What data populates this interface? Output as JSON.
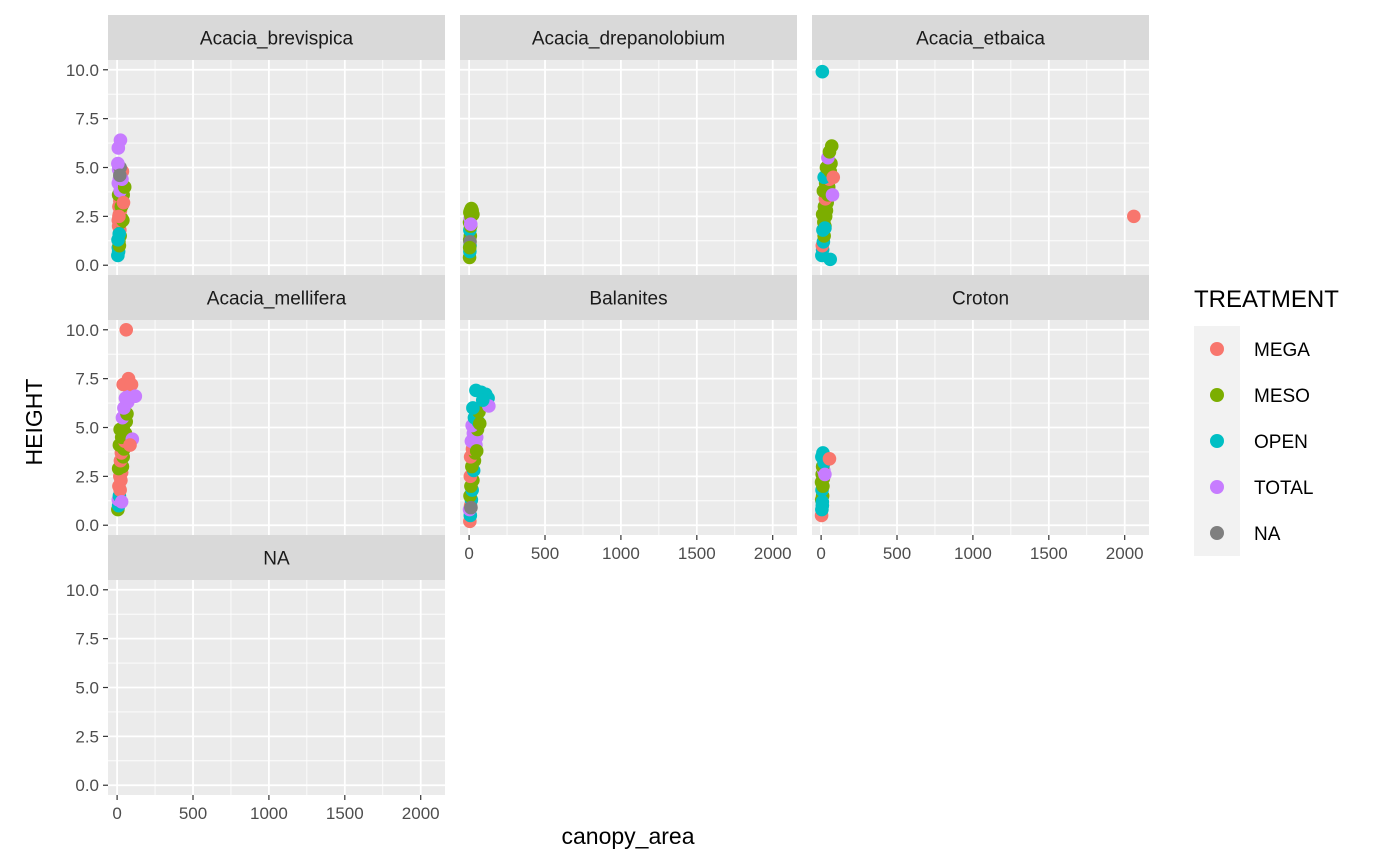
{
  "chart_data": {
    "type": "scatter",
    "xlabel": "canopy_area",
    "ylabel": "HEIGHT",
    "xlim": [
      -60,
      2160
    ],
    "ylim": [
      -0.5,
      10.5
    ],
    "x_ticks": [
      0,
      500,
      1000,
      1500,
      2000
    ],
    "x_tick_labels": [
      "0",
      "500",
      "1000",
      "1500",
      "2000"
    ],
    "y_ticks": [
      0,
      2.5,
      5,
      7.5,
      10
    ],
    "y_tick_labels": [
      "0.0",
      "2.5",
      "5.0",
      "7.5",
      "10.0"
    ],
    "grid": true,
    "legend": {
      "title": "TREATMENT",
      "position": "right",
      "entries": [
        {
          "name": "MEGA",
          "color": "#F8766D"
        },
        {
          "name": "MESO",
          "color": "#7CAE00"
        },
        {
          "name": "OPEN",
          "color": "#00BFC4"
        },
        {
          "name": "TOTAL",
          "color": "#C77CFF"
        },
        {
          "name": "NA",
          "color": "#7F7F7F"
        }
      ]
    },
    "panels": [
      {
        "title": "Acacia_brevispica",
        "points": [
          [
            5,
            0.5,
            "OPEN"
          ],
          [
            10,
            0.7,
            "OPEN"
          ],
          [
            8,
            0.9,
            "OPEN"
          ],
          [
            15,
            1.0,
            "MESO"
          ],
          [
            12,
            1.2,
            "MESO"
          ],
          [
            20,
            1.5,
            "MESO"
          ],
          [
            6,
            1.3,
            "OPEN"
          ],
          [
            18,
            1.8,
            "MEGA"
          ],
          [
            10,
            2.0,
            "MEGA"
          ],
          [
            25,
            2.2,
            "MESO"
          ],
          [
            8,
            2.3,
            "MEGA"
          ],
          [
            30,
            2.4,
            "MESO"
          ],
          [
            15,
            2.6,
            "MEGA"
          ],
          [
            22,
            2.8,
            "MEGA"
          ],
          [
            12,
            3.0,
            "MEGA"
          ],
          [
            35,
            3.1,
            "MESO"
          ],
          [
            18,
            3.3,
            "MEGA"
          ],
          [
            28,
            3.5,
            "MEGA"
          ],
          [
            10,
            3.6,
            "MESO"
          ],
          [
            40,
            3.6,
            "MESO"
          ],
          [
            20,
            3.8,
            "TOTAL"
          ],
          [
            45,
            4.0,
            "TOTAL"
          ],
          [
            8,
            4.2,
            "TOTAL"
          ],
          [
            30,
            4.2,
            "TOTAL"
          ],
          [
            15,
            4.4,
            "TOTAL"
          ],
          [
            25,
            4.6,
            "MEGA"
          ],
          [
            35,
            4.8,
            "MEGA"
          ],
          [
            10,
            4.9,
            "TOTAL"
          ],
          [
            20,
            5.0,
            "NA"
          ],
          [
            5,
            5.2,
            "TOTAL"
          ],
          [
            8,
            6.0,
            "TOTAL"
          ],
          [
            22,
            6.4,
            "TOTAL"
          ],
          [
            50,
            4.0,
            "MESO"
          ],
          [
            38,
            2.3,
            "MESO"
          ],
          [
            14,
            1.6,
            "OPEN"
          ],
          [
            28,
            3.0,
            "MESO"
          ],
          [
            32,
            4.4,
            "TOTAL"
          ],
          [
            12,
            2.5,
            "MEGA"
          ],
          [
            42,
            3.2,
            "MEGA"
          ],
          [
            18,
            4.6,
            "NA"
          ]
        ]
      },
      {
        "title": "Acacia_drepanolobium",
        "points": [
          [
            3,
            0.4,
            "MESO"
          ],
          [
            5,
            0.7,
            "OPEN"
          ],
          [
            6,
            1.0,
            "OPEN"
          ],
          [
            4,
            1.3,
            "MESO"
          ],
          [
            8,
            1.5,
            "MESO"
          ],
          [
            5,
            1.8,
            "OPEN"
          ],
          [
            10,
            2.0,
            "MESO"
          ],
          [
            3,
            2.2,
            "MESO"
          ],
          [
            7,
            2.4,
            "TOTAL"
          ],
          [
            12,
            2.5,
            "MESO"
          ],
          [
            5,
            2.7,
            "MESO"
          ],
          [
            9,
            2.8,
            "MESO"
          ],
          [
            15,
            2.9,
            "MESO"
          ],
          [
            20,
            2.8,
            "MESO"
          ],
          [
            25,
            2.6,
            "MESO"
          ],
          [
            6,
            1.2,
            "NA"
          ],
          [
            11,
            2.1,
            "TOTAL"
          ],
          [
            4,
            0.9,
            "MESO"
          ]
        ]
      },
      {
        "title": "Acacia_etbaica",
        "points": [
          [
            5,
            0.5,
            "OPEN"
          ],
          [
            10,
            0.8,
            "OPEN"
          ],
          [
            8,
            1.0,
            "MEGA"
          ],
          [
            15,
            1.2,
            "OPEN"
          ],
          [
            20,
            1.5,
            "MESO"
          ],
          [
            12,
            1.8,
            "OPEN"
          ],
          [
            25,
            2.0,
            "MESO"
          ],
          [
            18,
            2.2,
            "MESO"
          ],
          [
            30,
            2.5,
            "MESO"
          ],
          [
            10,
            2.6,
            "MESO"
          ],
          [
            35,
            2.8,
            "MESO"
          ],
          [
            22,
            3.0,
            "MESO"
          ],
          [
            40,
            3.2,
            "MESO"
          ],
          [
            28,
            3.4,
            "MEGA"
          ],
          [
            45,
            3.6,
            "MESO"
          ],
          [
            15,
            3.8,
            "MESO"
          ],
          [
            50,
            4.0,
            "MESO"
          ],
          [
            30,
            4.2,
            "MESO"
          ],
          [
            55,
            4.4,
            "MEGA"
          ],
          [
            20,
            4.5,
            "OPEN"
          ],
          [
            40,
            4.6,
            "OPEN"
          ],
          [
            60,
            4.8,
            "MESO"
          ],
          [
            35,
            5.0,
            "MESO"
          ],
          [
            65,
            5.2,
            "MESO"
          ],
          [
            45,
            5.5,
            "TOTAL"
          ],
          [
            55,
            5.8,
            "MESO"
          ],
          [
            70,
            6.1,
            "MESO"
          ],
          [
            8,
            9.9,
            "OPEN"
          ],
          [
            60,
            0.3,
            "OPEN"
          ],
          [
            25,
            1.9,
            "OPEN"
          ],
          [
            75,
            3.6,
            "TOTAL"
          ],
          [
            80,
            4.5,
            "MEGA"
          ],
          [
            2060,
            2.5,
            "MEGA"
          ]
        ]
      },
      {
        "title": "Acacia_mellifera",
        "points": [
          [
            5,
            0.8,
            "MESO"
          ],
          [
            10,
            1.0,
            "OPEN"
          ],
          [
            8,
            1.3,
            "TOTAL"
          ],
          [
            15,
            1.5,
            "OPEN"
          ],
          [
            20,
            1.8,
            "MEGA"
          ],
          [
            12,
            2.0,
            "MEGA"
          ],
          [
            25,
            2.3,
            "MEGA"
          ],
          [
            18,
            2.5,
            "MEGA"
          ],
          [
            30,
            2.7,
            "MEGA"
          ],
          [
            10,
            2.9,
            "MESO"
          ],
          [
            35,
            3.0,
            "MESO"
          ],
          [
            22,
            3.3,
            "MEGA"
          ],
          [
            40,
            3.5,
            "MESO"
          ],
          [
            28,
            3.7,
            "MEGA"
          ],
          [
            45,
            3.9,
            "MESO"
          ],
          [
            15,
            4.1,
            "MESO"
          ],
          [
            50,
            4.3,
            "MEGA"
          ],
          [
            30,
            4.5,
            "MESO"
          ],
          [
            55,
            4.7,
            "MESO"
          ],
          [
            20,
            4.9,
            "MESO"
          ],
          [
            40,
            5.0,
            "MESO"
          ],
          [
            60,
            5.3,
            "MESO"
          ],
          [
            35,
            5.5,
            "TOTAL"
          ],
          [
            65,
            5.7,
            "MESO"
          ],
          [
            45,
            6.0,
            "TOTAL"
          ],
          [
            70,
            6.3,
            "TOTAL"
          ],
          [
            55,
            6.5,
            "TOTAL"
          ],
          [
            80,
            7.0,
            "TOTAL"
          ],
          [
            40,
            7.2,
            "MEGA"
          ],
          [
            75,
            7.5,
            "MEGA"
          ],
          [
            95,
            7.2,
            "MEGA"
          ],
          [
            120,
            6.6,
            "TOTAL"
          ],
          [
            100,
            4.4,
            "TOTAL"
          ],
          [
            85,
            4.1,
            "MEGA"
          ],
          [
            60,
            10.0,
            "MEGA"
          ],
          [
            30,
            1.2,
            "TOTAL"
          ]
        ]
      },
      {
        "title": "Balanites",
        "points": [
          [
            5,
            0.2,
            "MEGA"
          ],
          [
            8,
            0.5,
            "OPEN"
          ],
          [
            3,
            0.8,
            "TOTAL"
          ],
          [
            10,
            1.0,
            "MEGA"
          ],
          [
            15,
            1.3,
            "OPEN"
          ],
          [
            6,
            1.5,
            "MESO"
          ],
          [
            20,
            1.8,
            "OPEN"
          ],
          [
            12,
            2.0,
            "MESO"
          ],
          [
            25,
            2.3,
            "MESO"
          ],
          [
            8,
            2.5,
            "MEGA"
          ],
          [
            30,
            2.8,
            "OPEN"
          ],
          [
            18,
            3.0,
            "MESO"
          ],
          [
            35,
            3.3,
            "MESO"
          ],
          [
            10,
            3.5,
            "MEGA"
          ],
          [
            40,
            3.7,
            "MESO"
          ],
          [
            22,
            3.9,
            "MEGA"
          ],
          [
            45,
            4.1,
            "TOTAL"
          ],
          [
            15,
            4.3,
            "TOTAL"
          ],
          [
            50,
            4.5,
            "TOTAL"
          ],
          [
            28,
            4.7,
            "TOTAL"
          ],
          [
            55,
            4.9,
            "MESO"
          ],
          [
            20,
            5.1,
            "TOTAL"
          ],
          [
            60,
            5.3,
            "OPEN"
          ],
          [
            35,
            5.5,
            "OPEN"
          ],
          [
            65,
            5.8,
            "MESO"
          ],
          [
            25,
            6.0,
            "OPEN"
          ],
          [
            45,
            6.9,
            "OPEN"
          ],
          [
            80,
            6.8,
            "OPEN"
          ],
          [
            110,
            6.7,
            "OPEN"
          ],
          [
            125,
            6.5,
            "OPEN"
          ],
          [
            130,
            6.1,
            "TOTAL"
          ],
          [
            90,
            6.4,
            "OPEN"
          ],
          [
            70,
            5.2,
            "MESO"
          ],
          [
            50,
            3.8,
            "MESO"
          ],
          [
            12,
            0.9,
            "NA"
          ]
        ]
      },
      {
        "title": "Croton",
        "points": [
          [
            3,
            0.5,
            "MEGA"
          ],
          [
            5,
            0.8,
            "OPEN"
          ],
          [
            8,
            1.0,
            "OPEN"
          ],
          [
            4,
            1.3,
            "MESO"
          ],
          [
            10,
            1.5,
            "MESO"
          ],
          [
            6,
            1.8,
            "OPEN"
          ],
          [
            12,
            2.0,
            "MESO"
          ],
          [
            3,
            2.2,
            "MESO"
          ],
          [
            15,
            2.4,
            "MESO"
          ],
          [
            7,
            2.6,
            "MESO"
          ],
          [
            18,
            2.8,
            "TOTAL"
          ],
          [
            10,
            3.0,
            "MESO"
          ],
          [
            20,
            3.2,
            "OPEN"
          ],
          [
            5,
            3.5,
            "OPEN"
          ],
          [
            12,
            3.7,
            "OPEN"
          ],
          [
            55,
            3.4,
            "MEGA"
          ],
          [
            25,
            2.6,
            "TOTAL"
          ],
          [
            8,
            1.2,
            "OPEN"
          ]
        ]
      },
      {
        "title": "NA",
        "points": []
      }
    ]
  }
}
